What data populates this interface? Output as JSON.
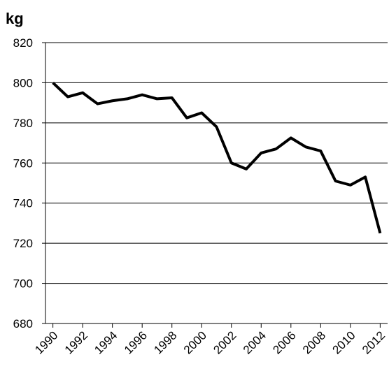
{
  "chart_data": {
    "type": "line",
    "ylabel": "kg",
    "x": [
      1990,
      1991,
      1992,
      1993,
      1994,
      1995,
      1996,
      1997,
      1998,
      1999,
      2000,
      2001,
      2002,
      2003,
      2004,
      2005,
      2006,
      2007,
      2008,
      2009,
      2010,
      2011,
      2012
    ],
    "series": [
      {
        "color": "#000000",
        "values": [
          800,
          793,
          795,
          789.5,
          791,
          792,
          794,
          792,
          792.5,
          782.5,
          785,
          778,
          760,
          757,
          765,
          767,
          772.5,
          768,
          766,
          751,
          749,
          753,
          725
        ]
      }
    ],
    "xlim": [
      1989.5,
      2012.5
    ],
    "xticks": [
      1990,
      1992,
      1994,
      1996,
      1998,
      2000,
      2002,
      2004,
      2006,
      2008,
      2010,
      2012
    ],
    "ylim": [
      680,
      820
    ],
    "yticks": [
      680,
      700,
      720,
      740,
      760,
      780,
      800,
      820
    ],
    "grid": true
  }
}
